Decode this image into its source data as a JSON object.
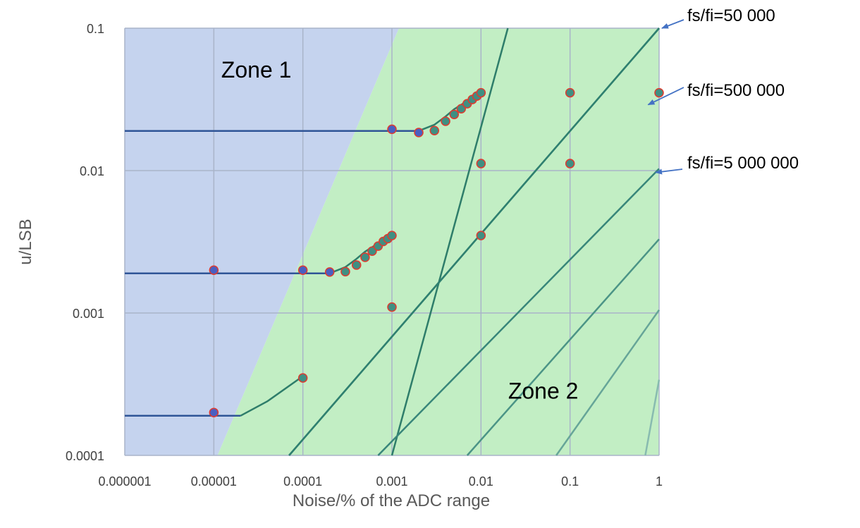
{
  "chart_data": {
    "type": "line",
    "title": "",
    "xlabel": "Noise/% of the ADC range",
    "ylabel": "u/LSB",
    "x_scale": "log",
    "y_scale": "log",
    "xlim": [
      1e-06,
      1
    ],
    "ylim": [
      0.0001,
      0.1
    ],
    "x_ticks": [
      {
        "value": 1e-06,
        "label": "0.000001"
      },
      {
        "value": 1e-05,
        "label": "0.00001"
      },
      {
        "value": 0.0001,
        "label": "0.0001"
      },
      {
        "value": 0.001,
        "label": "0.001"
      },
      {
        "value": 0.01,
        "label": "0.01"
      },
      {
        "value": 0.1,
        "label": "0.1"
      },
      {
        "value": 1,
        "label": "1"
      }
    ],
    "y_ticks": [
      {
        "value": 0.0001,
        "label": "0.0001"
      },
      {
        "value": 0.001,
        "label": "0.001"
      },
      {
        "value": 0.01,
        "label": "0.01"
      },
      {
        "value": 0.1,
        "label": "0.1"
      }
    ],
    "grid": true,
    "zones": [
      {
        "label": "Zone 1",
        "color": "#c5d3ee",
        "boundary": [
          [
            1e-06,
            0.0001
          ],
          [
            1.1e-05,
            0.0001
          ],
          [
            0.0012,
            0.1
          ],
          [
            1e-06,
            0.1
          ]
        ],
        "label_at": [
          3e-05,
          0.045
        ]
      },
      {
        "label": "Zone 2",
        "color": "#c2eec4",
        "boundary": [
          [
            1.1e-05,
            0.0001
          ],
          [
            1,
            0.0001
          ],
          [
            1,
            0.1
          ],
          [
            0.0012,
            0.1
          ]
        ],
        "label_at": [
          0.05,
          0.00025
        ]
      }
    ],
    "reference_lines": [
      {
        "x": [
          0.001,
          0.02
        ],
        "y": [
          0.0001,
          0.1
        ],
        "color": "#2e7d6a"
      },
      {
        "x": [
          7e-05,
          1
        ],
        "y": [
          0.0001,
          0.1
        ],
        "color": "#2e7d6a"
      },
      {
        "x": [
          7e-05,
          1
        ],
        "y": [
          0.0001,
          0.1
        ],
        "color": "#2f8070"
      },
      {
        "x": [
          0.0007,
          1
        ],
        "y": [
          0.0001,
          0.0103
        ],
        "color": "#38867a"
      },
      {
        "x": [
          0.007,
          1
        ],
        "y": [
          0.0001,
          0.0033
        ],
        "color": "#4b9486"
      },
      {
        "x": [
          0.07,
          1
        ],
        "y": [
          0.0001,
          0.00105
        ],
        "color": "#66a598"
      },
      {
        "x": [
          0.7,
          1
        ],
        "y": [
          0.0001,
          0.00034
        ],
        "color": "#88bbb0"
      }
    ],
    "series": [
      {
        "color": "#2f5597",
        "x": [
          1e-06,
          0.002
        ],
        "y": [
          0.019,
          0.019
        ]
      },
      {
        "color": "#2f5597",
        "x": [
          1e-06,
          0.0002
        ],
        "y": [
          0.0019,
          0.0019
        ]
      },
      {
        "color": "#2f5597",
        "x": [
          1e-06,
          2e-05
        ],
        "y": [
          0.00019,
          0.00019
        ]
      },
      {
        "color": "#2e7d6a",
        "x": [
          0.002,
          0.003,
          0.004,
          0.005,
          0.006,
          0.007,
          0.008,
          0.009,
          0.01
        ],
        "y": [
          0.019,
          0.021,
          0.024,
          0.027,
          0.029,
          0.031,
          0.033,
          0.035,
          0.036
        ]
      },
      {
        "color": "#2e7d6a",
        "x": [
          0.0002,
          0.0003,
          0.0004,
          0.0005,
          0.0006,
          0.0007,
          0.0008,
          0.0009,
          0.001
        ],
        "y": [
          0.0019,
          0.0021,
          0.0024,
          0.0027,
          0.0029,
          0.0031,
          0.0033,
          0.0035,
          0.0036
        ]
      },
      {
        "color": "#2e7d6a",
        "x": [
          2e-05,
          4e-05,
          0.0001
        ],
        "y": [
          0.00019,
          0.00024,
          0.00036
        ]
      }
    ],
    "points": [
      {
        "x": 0.001,
        "y": 0.0195,
        "fill": "#4a5fc1"
      },
      {
        "x": 0.002,
        "y": 0.0185,
        "fill": "#4a5fc1"
      },
      {
        "x": 0.003,
        "y": 0.0191,
        "fill": "#3f8f82"
      },
      {
        "x": 0.004,
        "y": 0.0222,
        "fill": "#3f8f82"
      },
      {
        "x": 0.005,
        "y": 0.0248,
        "fill": "#3f8f82"
      },
      {
        "x": 0.006,
        "y": 0.0272,
        "fill": "#3f8f82"
      },
      {
        "x": 0.007,
        "y": 0.0295,
        "fill": "#3f8f82"
      },
      {
        "x": 0.008,
        "y": 0.0316,
        "fill": "#3f8f82"
      },
      {
        "x": 0.009,
        "y": 0.0334,
        "fill": "#3f8f82"
      },
      {
        "x": 0.01,
        "y": 0.0352,
        "fill": "#3f8f82"
      },
      {
        "x": 0.1,
        "y": 0.0352,
        "fill": "#3f8f82"
      },
      {
        "x": 1,
        "y": 0.0352,
        "fill": "#3f8f82"
      },
      {
        "x": 0.01,
        "y": 0.0112,
        "fill": "#3f8f82"
      },
      {
        "x": 0.1,
        "y": 0.0112,
        "fill": "#3f8f82"
      },
      {
        "x": 1e-05,
        "y": 0.002,
        "fill": "#4a5fc1"
      },
      {
        "x": 0.0001,
        "y": 0.002,
        "fill": "#4a5fc1"
      },
      {
        "x": 0.0002,
        "y": 0.00194,
        "fill": "#4a5fc1"
      },
      {
        "x": 0.0003,
        "y": 0.00195,
        "fill": "#3f8f82"
      },
      {
        "x": 0.0004,
        "y": 0.00217,
        "fill": "#3f8f82"
      },
      {
        "x": 0.0005,
        "y": 0.00246,
        "fill": "#3f8f82"
      },
      {
        "x": 0.0006,
        "y": 0.00272,
        "fill": "#3f8f82"
      },
      {
        "x": 0.0007,
        "y": 0.00295,
        "fill": "#3f8f82"
      },
      {
        "x": 0.0008,
        "y": 0.00318,
        "fill": "#3f8f82"
      },
      {
        "x": 0.0009,
        "y": 0.00333,
        "fill": "#3f8f82"
      },
      {
        "x": 0.001,
        "y": 0.0035,
        "fill": "#3f8f82"
      },
      {
        "x": 0.01,
        "y": 0.0035,
        "fill": "#3f8f82"
      },
      {
        "x": 0.001,
        "y": 0.0011,
        "fill": "#3f8f82"
      },
      {
        "x": 0.0001,
        "y": 0.00035,
        "fill": "#3f8f82"
      },
      {
        "x": 1e-05,
        "y": 0.0002,
        "fill": "#4a5fc1"
      }
    ],
    "annotations": [
      {
        "text": "fs/fi=50 000",
        "arrow_to": [
          1,
          0.1
        ]
      },
      {
        "text": "fs/fi=500 000",
        "arrow_to": [
          0.7,
          0.029
        ]
      },
      {
        "text": "fs/fi=5 000 000",
        "arrow_to": [
          0.85,
          0.0097
        ]
      }
    ]
  }
}
